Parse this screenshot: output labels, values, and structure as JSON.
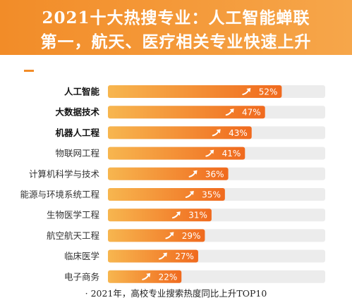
{
  "header": {
    "title_line1": "2021十大热搜专业：人工智能蝉联",
    "title_line2": "第一，航天、医疗相关专业快速上升"
  },
  "colors": {
    "bar_start": "#f7b64f",
    "bar_end": "#f06a1e",
    "track": "#ececec",
    "accent": "#f28c28"
  },
  "chart_data": {
    "type": "bar",
    "orientation": "horizontal",
    "categories": [
      "人工智能",
      "大数据技术",
      "机器人工程",
      "物联网工程",
      "计算机科学与技术",
      "能源与环境系统工程",
      "生物医学工程",
      "航空航天工程",
      "临床医学",
      "电子商务"
    ],
    "values": [
      52,
      47,
      43,
      41,
      36,
      35,
      31,
      29,
      27,
      22
    ],
    "value_labels": [
      "52%",
      "47%",
      "43%",
      "41%",
      "36%",
      "35%",
      "31%",
      "29%",
      "27%",
      "22%"
    ],
    "bold_categories": [
      "人工智能",
      "大数据技术",
      "机器人工程"
    ],
    "xlim": [
      0,
      65
    ],
    "grid": false,
    "legend": "none"
  },
  "footnote": "· 2021年，高校专业搜索热度同比上升TOP10"
}
